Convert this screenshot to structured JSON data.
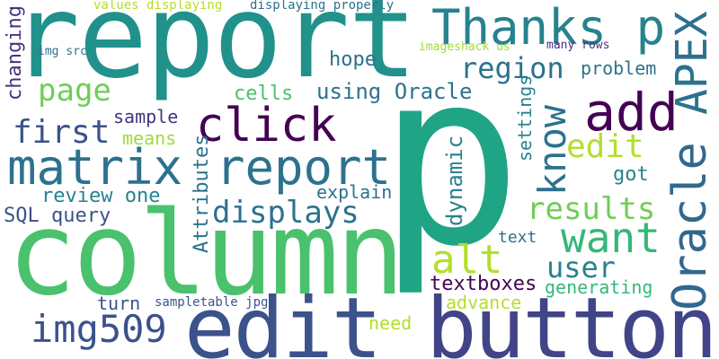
{
  "words": {
    "p": {
      "text": "p",
      "color": "#20a486"
    },
    "report1": {
      "text": "report",
      "color": "#21918c"
    },
    "column": {
      "text": "column",
      "color": "#4ac16d"
    },
    "edit1": {
      "text": "edit",
      "color": "#3b528b"
    },
    "button": {
      "text": "button",
      "color": "#414487"
    },
    "thanks": {
      "text": "Thanks p",
      "color": "#26828e"
    },
    "apex": {
      "text": "APEX",
      "color": "#2c728e"
    },
    "oracle1": {
      "text": "Oracle",
      "color": "#31688e"
    },
    "add": {
      "text": "add",
      "color": "#440154"
    },
    "matrix": {
      "text": "matrix",
      "color": "#2c728e"
    },
    "report2": {
      "text": "report",
      "color": "#2c728e"
    },
    "click": {
      "text": "click",
      "color": "#440154"
    },
    "want": {
      "text": "want",
      "color": "#35b779"
    },
    "know": {
      "text": "know",
      "color": "#2c728e"
    },
    "region": {
      "text": "region",
      "color": "#2c728e"
    },
    "page": {
      "text": "page",
      "color": "#6ece58"
    },
    "displays": {
      "text": "displays",
      "color": "#2c728e"
    },
    "first": {
      "text": "first",
      "color": "#3b528b"
    },
    "img509": {
      "text": "img509",
      "color": "#3b528b"
    },
    "alt": {
      "text": "alt",
      "color": "#b5de2b"
    },
    "results": {
      "text": "results",
      "color": "#6ece58"
    },
    "edit2": {
      "text": "edit",
      "color": "#b5de2b"
    },
    "user": {
      "text": "user",
      "color": "#26828e"
    },
    "using_oracle": {
      "text": "using Oracle",
      "color": "#2c728e"
    },
    "hope": {
      "text": "hope",
      "color": "#2c728e"
    },
    "problem": {
      "text": "problem",
      "color": "#2c728e"
    },
    "sql_query": {
      "text": "SQL query",
      "color": "#3b528b"
    },
    "review_one": {
      "text": "review one",
      "color": "#26828e"
    },
    "sample": {
      "text": "sample",
      "color": "#46337f"
    },
    "means": {
      "text": "means",
      "color": "#a0da39"
    },
    "cells": {
      "text": "cells",
      "color": "#4ac16d"
    },
    "explain": {
      "text": "explain",
      "color": "#2c728e"
    },
    "changing": {
      "text": "changing",
      "color": "#46337f"
    },
    "attributes": {
      "text": "Attributes",
      "color": "#2c728e"
    },
    "dynamic": {
      "text": "dynamic",
      "color": "#26828e"
    },
    "settings": {
      "text": "settings",
      "color": "#26828e"
    },
    "got": {
      "text": "got",
      "color": "#26828e"
    },
    "text": {
      "text": "text",
      "color": "#2c728e"
    },
    "textboxes": {
      "text": "textboxes",
      "color": "#440154"
    },
    "generating": {
      "text": "generating",
      "color": "#35b779"
    },
    "advance": {
      "text": "advance",
      "color": "#b5de2b"
    },
    "turn": {
      "text": "turn",
      "color": "#3b528b"
    },
    "sampletable_jpg": {
      "text": "sampletable jpg",
      "color": "#3b528b"
    },
    "need": {
      "text": "need",
      "color": "#b5de2b"
    },
    "values_displaying": {
      "text": "values displaying",
      "color": "#b5de2b"
    },
    "displaying_properly": {
      "text": "displaying properly",
      "color": "#2c728e"
    },
    "img_src": {
      "text": "img src",
      "color": "#2c728e"
    },
    "imageshack_us": {
      "text": "imageshack us",
      "color": "#a0da39"
    },
    "many_rows": {
      "text": "many rows",
      "color": "#46337f"
    }
  }
}
